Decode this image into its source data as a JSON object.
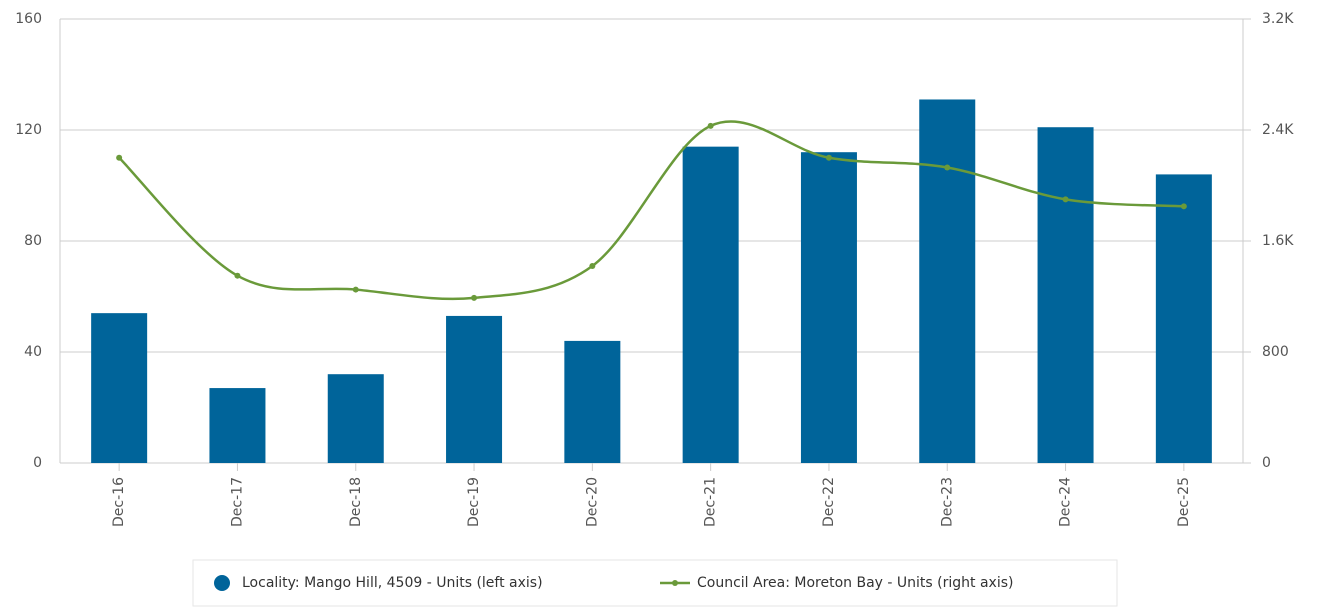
{
  "chart_data": {
    "type": "bar",
    "categories": [
      "Dec-16",
      "Dec-17",
      "Dec-18",
      "Dec-19",
      "Dec-20",
      "Dec-21",
      "Dec-22",
      "Dec-23",
      "Dec-24",
      "Dec-25"
    ],
    "series": [
      {
        "name": "Locality: Mango Hill, 4509 - Units (left axis)",
        "type": "bar",
        "color": "#00649a",
        "values": [
          54,
          27,
          32,
          53,
          44,
          114,
          112,
          131,
          121,
          104
        ]
      },
      {
        "name": "Council Area: Moreton Bay - Units (right axis)",
        "type": "line",
        "axis": "y2",
        "color": "#6a9a3a",
        "values": [
          2200,
          1350,
          1250,
          1190,
          1420,
          2430,
          2200,
          2130,
          1900,
          1850
        ]
      }
    ],
    "ylim": [
      0,
      160
    ],
    "yticks": [
      0,
      40,
      80,
      120,
      160
    ],
    "y2lim": [
      0,
      3200
    ],
    "y2ticks": [
      0,
      800,
      {
        "value": 1600,
        "label": "1.6K"
      },
      {
        "value": 2400,
        "label": "2.4K"
      },
      {
        "value": 3200,
        "label": "3.2K"
      }
    ],
    "grid": true,
    "legend": "bottom"
  }
}
